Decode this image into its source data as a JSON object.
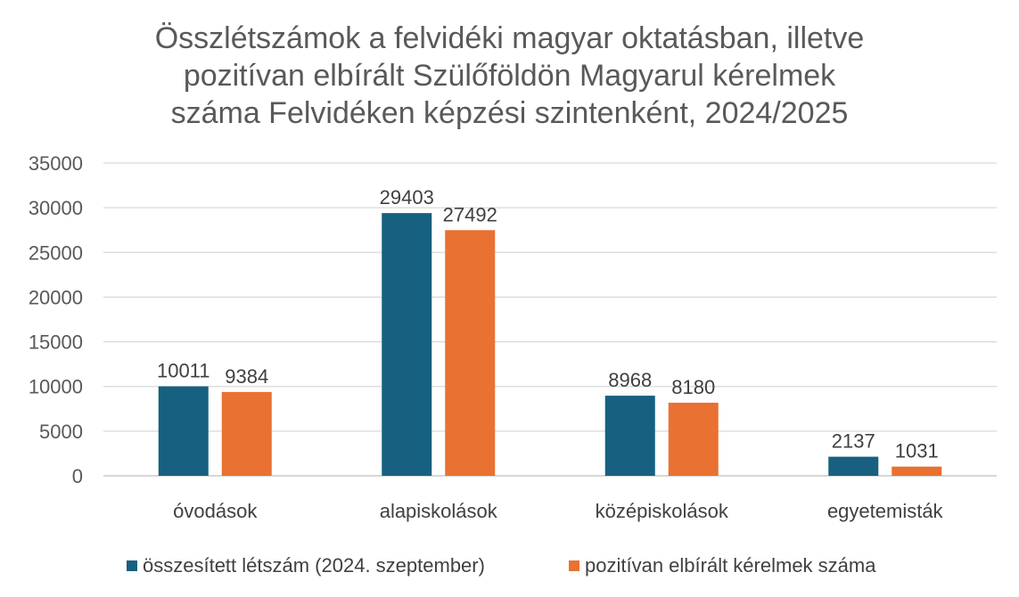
{
  "chart_data": {
    "type": "bar",
    "title_lines": [
      "Összlétszámok a felvidéki magyar oktatásban, illetve",
      "pozitívan elbírált Szülőföldön Magyarul kérelmek",
      "száma Felvidéken képzési szintenként, 2024/2025"
    ],
    "categories": [
      "óvodások",
      "alapiskolások",
      "középiskolások",
      "egyetemisták"
    ],
    "series": [
      {
        "name": "összesített létszám (2024. szeptember)",
        "values": [
          10011,
          29403,
          8968,
          2137
        ],
        "color": "#17607F"
      },
      {
        "name": "pozitívan elbírált kérelmek száma",
        "values": [
          9384,
          27492,
          8180,
          1031
        ],
        "color": "#E97132"
      }
    ],
    "ylim": [
      0,
      35000
    ],
    "yticks": [
      0,
      5000,
      10000,
      15000,
      20000,
      25000,
      30000,
      35000
    ],
    "grid": true,
    "legend_position": "bottom"
  }
}
